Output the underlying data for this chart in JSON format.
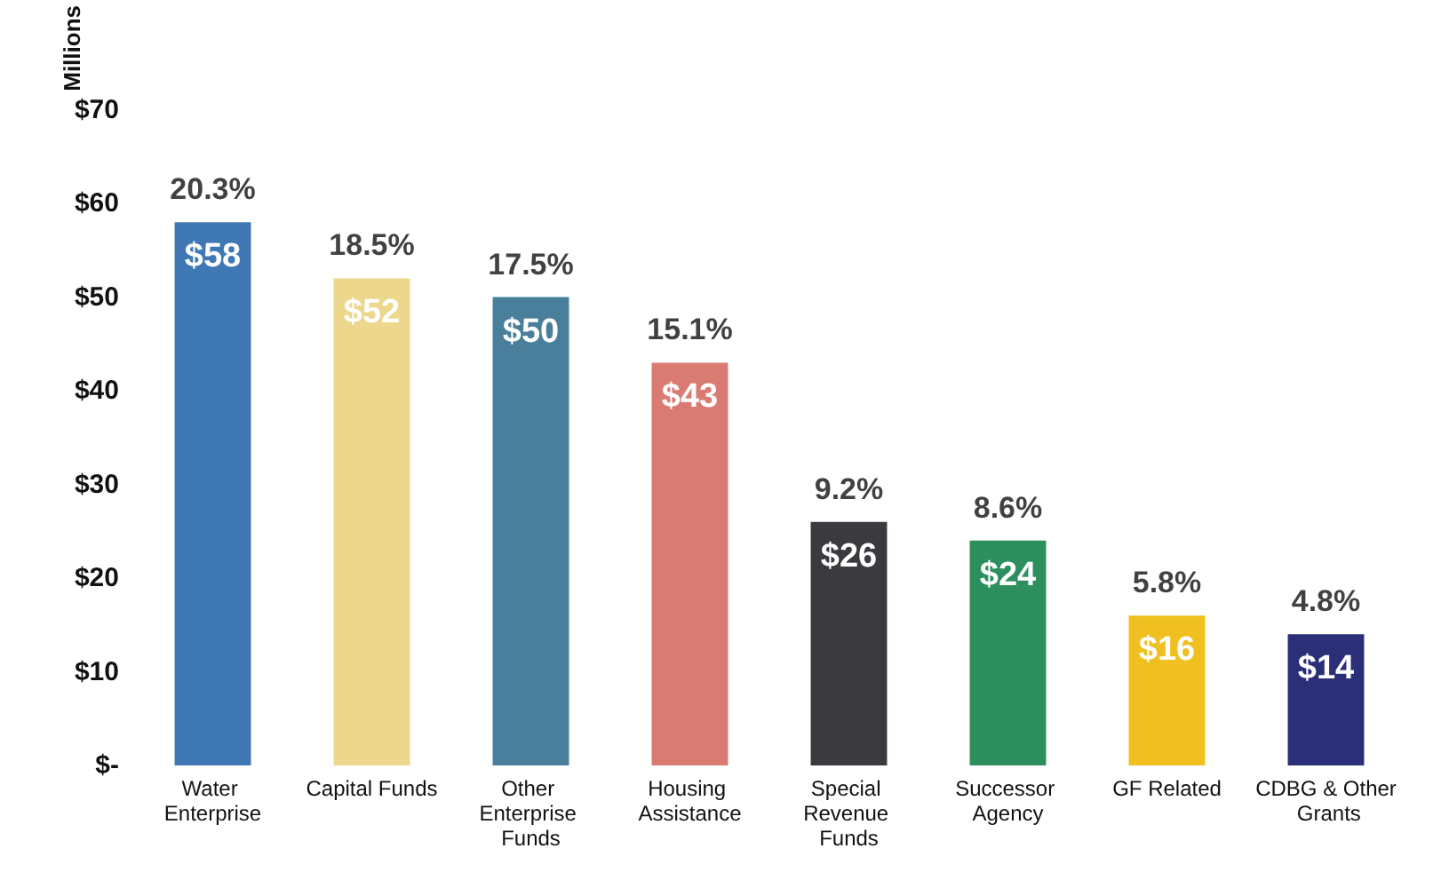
{
  "chart_data": {
    "type": "bar",
    "ylabel": "Millions",
    "categories": [
      "Water Enterprise",
      "Capital Funds",
      "Other Enterprise Funds",
      "Housing Assistance",
      "Special Revenue Funds",
      "Successor Agency",
      "GF Related",
      "CDBG & Other Grants"
    ],
    "values": [
      58,
      52,
      50,
      43,
      26,
      24,
      16,
      14
    ],
    "colors": [
      "#3f78b5",
      "#ecd78c",
      "#4a7f9c",
      "#d97b73",
      "#3a3a3f",
      "#2e8f5e",
      "#f0c020",
      "#2b2f78"
    ],
    "value_labels": [
      "$58",
      "$52",
      "$50",
      "$43",
      "$26",
      "$24",
      "$16",
      "$14"
    ],
    "annotations": [
      {
        "text": "20.3%",
        "x": "Water Enterprise",
        "y": 58
      },
      {
        "text": "18.5%",
        "x": "Capital Funds",
        "y": 52
      },
      {
        "text": "17.5%",
        "x": "Other Enterprise Funds",
        "y": 50
      },
      {
        "text": "15.1%",
        "x": "Housing Assistance",
        "y": 43
      },
      {
        "text": "9.2%",
        "x": "Special Revenue Funds",
        "y": 26
      },
      {
        "text": "8.6%",
        "x": "Successor Agency",
        "y": 24
      },
      {
        "text": "5.8%",
        "x": "GF Related",
        "y": 16
      },
      {
        "text": "4.8%",
        "x": "CDBG & Other Grants",
        "y": 14
      }
    ],
    "ylim": [
      0,
      70
    ],
    "yticks": [
      {
        "value": 0,
        "label": "$-"
      },
      {
        "value": 10,
        "label": "$10"
      },
      {
        "value": 20,
        "label": "$20"
      },
      {
        "value": 30,
        "label": "$30"
      },
      {
        "value": 40,
        "label": "$40"
      },
      {
        "value": 50,
        "label": "$50"
      },
      {
        "value": 60,
        "label": "$60"
      },
      {
        "value": 70,
        "label": "$70"
      }
    ],
    "grid": false
  }
}
